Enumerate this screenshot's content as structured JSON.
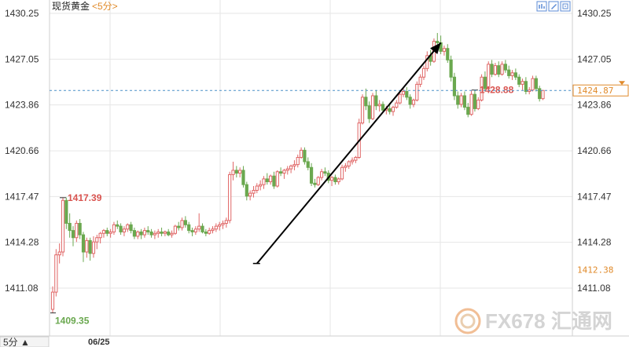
{
  "header": {
    "title": "现货黄金",
    "interval": "<5分>"
  },
  "bottom_bar": {
    "interval_label": "5分 ▲"
  },
  "price_boxes": {
    "current": "1424.87",
    "lower": "1412.38"
  },
  "watermark": {
    "text": "FX678 汇通网"
  },
  "toolbar": {
    "icons": [
      "chart-settings-icon",
      "draw-tool-icon",
      "expand-icon",
      "fullscreen-icon"
    ]
  },
  "colors": {
    "up": "#e06666",
    "down": "#6aa84f",
    "grid": "#e6e6e6",
    "dashed": "#4a90c8",
    "orange": "#e08a2a"
  },
  "chart_data": {
    "type": "candlestick",
    "title": "现货黄金",
    "interval": "5分",
    "y_ticks": [
      1430.25,
      1427.05,
      1423.86,
      1420.66,
      1417.47,
      1414.28,
      1411.08
    ],
    "y_tick_labels": [
      "1430.25",
      "1427.05",
      "1423.86",
      "1420.66",
      "1417.47",
      "1414.28",
      "1411.08"
    ],
    "ylim": [
      1408.7,
      1430.7
    ],
    "x_labels": [
      {
        "label": "06/25",
        "index": 12
      }
    ],
    "current_price": 1424.87,
    "lower_price_marker": 1412.38,
    "annotations": [
      {
        "label": "1428.88",
        "type": "high",
        "index": 124
      },
      {
        "label": "1417.39",
        "type": "high",
        "index": 3
      },
      {
        "label": "1409.35",
        "type": "low",
        "index": 0
      }
    ],
    "arrow": {
      "from_index": 60,
      "from_price": 1412.8,
      "to_index": 114,
      "to_price": 1428.2
    },
    "candles": [
      [
        1409.6,
        1411.2,
        1409.35,
        1410.8
      ],
      [
        1410.8,
        1413.8,
        1410.5,
        1413.4
      ],
      [
        1413.4,
        1414.2,
        1412.8,
        1413.6
      ],
      [
        1413.6,
        1417.39,
        1413.3,
        1417.2
      ],
      [
        1417.2,
        1417.4,
        1415.2,
        1415.6
      ],
      [
        1415.6,
        1416.3,
        1414.6,
        1415.1
      ],
      [
        1415.1,
        1415.4,
        1414.0,
        1414.6
      ],
      [
        1414.6,
        1415.8,
        1414.3,
        1415.6
      ],
      [
        1415.6,
        1415.9,
        1414.5,
        1414.8
      ],
      [
        1414.8,
        1415.0,
        1412.9,
        1413.6
      ],
      [
        1413.6,
        1414.6,
        1413.2,
        1414.4
      ],
      [
        1414.4,
        1414.6,
        1413.0,
        1413.5
      ],
      [
        1413.5,
        1414.7,
        1413.2,
        1414.3
      ],
      [
        1414.3,
        1414.8,
        1413.8,
        1414.6
      ],
      [
        1414.6,
        1415.0,
        1414.2,
        1414.9
      ],
      [
        1414.9,
        1415.2,
        1414.6,
        1415.1
      ],
      [
        1415.1,
        1415.3,
        1414.7,
        1414.9
      ],
      [
        1414.9,
        1415.2,
        1414.6,
        1415.0
      ],
      [
        1415.0,
        1415.7,
        1414.8,
        1415.5
      ],
      [
        1415.5,
        1415.8,
        1415.2,
        1415.4
      ],
      [
        1415.4,
        1415.6,
        1414.8,
        1415.0
      ],
      [
        1415.0,
        1415.4,
        1414.7,
        1415.2
      ],
      [
        1415.2,
        1415.6,
        1415.0,
        1415.5
      ],
      [
        1415.5,
        1415.7,
        1414.9,
        1415.1
      ],
      [
        1415.1,
        1415.3,
        1414.5,
        1414.7
      ],
      [
        1414.7,
        1415.1,
        1414.5,
        1415.0
      ],
      [
        1415.0,
        1415.2,
        1414.5,
        1414.8
      ],
      [
        1414.8,
        1415.3,
        1414.6,
        1415.1
      ],
      [
        1415.1,
        1415.4,
        1414.8,
        1415.0
      ],
      [
        1415.0,
        1415.2,
        1414.6,
        1414.8
      ],
      [
        1414.8,
        1415.1,
        1414.5,
        1414.9
      ],
      [
        1414.9,
        1415.2,
        1414.6,
        1415.0
      ],
      [
        1415.0,
        1415.3,
        1414.7,
        1414.9
      ],
      [
        1414.9,
        1415.1,
        1414.7,
        1415.0
      ],
      [
        1415.0,
        1415.2,
        1414.7,
        1414.8
      ],
      [
        1414.8,
        1415.1,
        1414.6,
        1414.9
      ],
      [
        1414.9,
        1415.5,
        1414.8,
        1415.4
      ],
      [
        1415.4,
        1415.7,
        1415.1,
        1415.3
      ],
      [
        1415.3,
        1416.0,
        1415.1,
        1415.8
      ],
      [
        1415.8,
        1416.1,
        1415.3,
        1415.5
      ],
      [
        1415.5,
        1415.7,
        1414.9,
        1415.1
      ],
      [
        1415.1,
        1415.3,
        1414.7,
        1415.0
      ],
      [
        1415.0,
        1415.4,
        1414.8,
        1415.2
      ],
      [
        1415.2,
        1416.3,
        1415.0,
        1415.4
      ],
      [
        1415.4,
        1415.6,
        1414.9,
        1415.0
      ],
      [
        1415.0,
        1415.2,
        1414.7,
        1414.9
      ],
      [
        1414.9,
        1415.3,
        1414.8,
        1415.1
      ],
      [
        1415.1,
        1415.4,
        1414.9,
        1415.2
      ],
      [
        1415.2,
        1415.6,
        1415.0,
        1415.4
      ],
      [
        1415.4,
        1415.7,
        1415.1,
        1415.5
      ],
      [
        1415.5,
        1415.8,
        1415.2,
        1415.6
      ],
      [
        1415.6,
        1416.0,
        1415.3,
        1415.8
      ],
      [
        1415.8,
        1419.2,
        1415.6,
        1419.0
      ],
      [
        1419.0,
        1419.9,
        1418.6,
        1419.3
      ],
      [
        1419.3,
        1419.6,
        1418.8,
        1419.1
      ],
      [
        1419.1,
        1419.5,
        1418.8,
        1419.3
      ],
      [
        1419.3,
        1419.6,
        1418.1,
        1418.3
      ],
      [
        1418.3,
        1418.5,
        1417.2,
        1417.5
      ],
      [
        1417.5,
        1417.9,
        1417.2,
        1417.7
      ],
      [
        1417.7,
        1418.2,
        1417.4,
        1417.9
      ],
      [
        1417.9,
        1418.4,
        1417.7,
        1418.2
      ],
      [
        1418.2,
        1418.6,
        1417.9,
        1418.3
      ],
      [
        1418.3,
        1418.9,
        1418.0,
        1418.7
      ],
      [
        1418.7,
        1419.1,
        1418.3,
        1418.5
      ],
      [
        1418.5,
        1419.0,
        1418.3,
        1418.9
      ],
      [
        1418.9,
        1419.2,
        1418.0,
        1418.2
      ],
      [
        1418.2,
        1419.3,
        1418.1,
        1419.2
      ],
      [
        1419.2,
        1419.5,
        1418.9,
        1419.1
      ],
      [
        1419.1,
        1419.4,
        1418.7,
        1419.3
      ],
      [
        1419.3,
        1419.6,
        1419.0,
        1419.4
      ],
      [
        1419.4,
        1419.7,
        1419.1,
        1419.6
      ],
      [
        1419.6,
        1420.0,
        1419.3,
        1419.7
      ],
      [
        1419.7,
        1420.4,
        1419.5,
        1420.2
      ],
      [
        1420.2,
        1420.9,
        1420.1,
        1420.7
      ],
      [
        1420.7,
        1420.9,
        1419.7,
        1419.9
      ],
      [
        1419.9,
        1420.2,
        1419.3,
        1419.5
      ],
      [
        1419.5,
        1419.8,
        1418.2,
        1418.4
      ],
      [
        1418.4,
        1418.7,
        1418.1,
        1418.3
      ],
      [
        1418.3,
        1418.9,
        1418.2,
        1418.8
      ],
      [
        1418.8,
        1419.4,
        1418.6,
        1419.2
      ],
      [
        1419.2,
        1419.5,
        1418.9,
        1419.1
      ],
      [
        1419.1,
        1419.3,
        1418.4,
        1418.6
      ],
      [
        1418.6,
        1418.9,
        1418.2,
        1418.8
      ],
      [
        1418.8,
        1419.0,
        1418.3,
        1418.5
      ],
      [
        1418.5,
        1418.8,
        1418.3,
        1418.7
      ],
      [
        1418.7,
        1419.7,
        1418.6,
        1419.5
      ],
      [
        1419.5,
        1419.8,
        1419.2,
        1419.6
      ],
      [
        1419.6,
        1420.0,
        1419.4,
        1419.9
      ],
      [
        1419.9,
        1420.2,
        1419.7,
        1420.0
      ],
      [
        1420.0,
        1420.3,
        1419.8,
        1420.2
      ],
      [
        1420.2,
        1422.9,
        1420.1,
        1422.6
      ],
      [
        1422.6,
        1424.6,
        1422.5,
        1424.4
      ],
      [
        1424.4,
        1425.0,
        1423.5,
        1423.8
      ],
      [
        1423.8,
        1424.1,
        1422.6,
        1422.9
      ],
      [
        1422.9,
        1424.7,
        1422.8,
        1424.5
      ],
      [
        1424.5,
        1424.9,
        1423.5,
        1423.8
      ],
      [
        1423.8,
        1424.2,
        1423.4,
        1423.9
      ],
      [
        1423.9,
        1424.1,
        1423.3,
        1423.5
      ],
      [
        1423.5,
        1423.8,
        1423.2,
        1423.6
      ],
      [
        1423.6,
        1424.0,
        1423.2,
        1423.4
      ],
      [
        1423.4,
        1423.8,
        1423.1,
        1423.7
      ],
      [
        1423.7,
        1424.2,
        1423.6,
        1424.0
      ],
      [
        1424.0,
        1424.7,
        1423.9,
        1424.6
      ],
      [
        1424.6,
        1425.0,
        1424.4,
        1424.8
      ],
      [
        1424.8,
        1425.1,
        1424.2,
        1424.4
      ],
      [
        1424.4,
        1424.6,
        1423.6,
        1423.9
      ],
      [
        1423.9,
        1424.3,
        1423.7,
        1424.2
      ],
      [
        1424.2,
        1425.5,
        1424.1,
        1425.3
      ],
      [
        1425.3,
        1426.0,
        1425.1,
        1425.8
      ],
      [
        1425.8,
        1426.6,
        1425.6,
        1426.4
      ],
      [
        1426.4,
        1427.6,
        1426.2,
        1427.3
      ],
      [
        1427.3,
        1427.7,
        1426.6,
        1426.9
      ],
      [
        1426.9,
        1428.5,
        1426.8,
        1428.3
      ],
      [
        1428.3,
        1428.88,
        1427.9,
        1428.2
      ],
      [
        1428.2,
        1428.7,
        1427.4,
        1427.6
      ],
      [
        1427.6,
        1428.0,
        1427.3,
        1427.8
      ],
      [
        1427.8,
        1428.1,
        1426.8,
        1427.0
      ],
      [
        1427.0,
        1427.3,
        1425.5,
        1425.8
      ],
      [
        1425.8,
        1426.1,
        1424.2,
        1424.5
      ],
      [
        1424.5,
        1424.8,
        1423.6,
        1423.9
      ],
      [
        1423.9,
        1424.7,
        1423.7,
        1424.5
      ],
      [
        1424.5,
        1424.8,
        1423.5,
        1423.7
      ],
      [
        1423.7,
        1424.0,
        1423.0,
        1423.2
      ],
      [
        1423.2,
        1424.9,
        1423.1,
        1424.6
      ],
      [
        1424.6,
        1424.9,
        1423.4,
        1423.6
      ],
      [
        1423.6,
        1424.4,
        1423.5,
        1424.2
      ],
      [
        1424.2,
        1426.0,
        1424.1,
        1425.8
      ],
      [
        1425.8,
        1426.2,
        1424.8,
        1425.0
      ],
      [
        1425.0,
        1426.9,
        1424.9,
        1426.7
      ],
      [
        1426.7,
        1427.0,
        1425.8,
        1426.0
      ],
      [
        1426.0,
        1426.8,
        1425.9,
        1426.6
      ],
      [
        1426.6,
        1426.9,
        1425.8,
        1426.0
      ],
      [
        1426.0,
        1426.9,
        1425.9,
        1426.7
      ],
      [
        1426.7,
        1427.0,
        1426.1,
        1426.3
      ],
      [
        1426.3,
        1426.6,
        1425.7,
        1425.9
      ],
      [
        1425.9,
        1426.3,
        1425.6,
        1426.1
      ],
      [
        1426.1,
        1426.4,
        1425.6,
        1425.8
      ],
      [
        1425.8,
        1426.0,
        1425.1,
        1425.3
      ],
      [
        1425.3,
        1425.7,
        1424.9,
        1425.5
      ],
      [
        1425.5,
        1425.8,
        1424.6,
        1424.8
      ],
      [
        1424.8,
        1425.1,
        1424.6,
        1424.9
      ],
      [
        1424.9,
        1425.9,
        1424.8,
        1425.7
      ],
      [
        1425.7,
        1425.9,
        1424.8,
        1425.0
      ],
      [
        1425.0,
        1425.2,
        1424.1,
        1424.3
      ],
      [
        1424.3,
        1424.9,
        1424.2,
        1424.87
      ]
    ]
  }
}
